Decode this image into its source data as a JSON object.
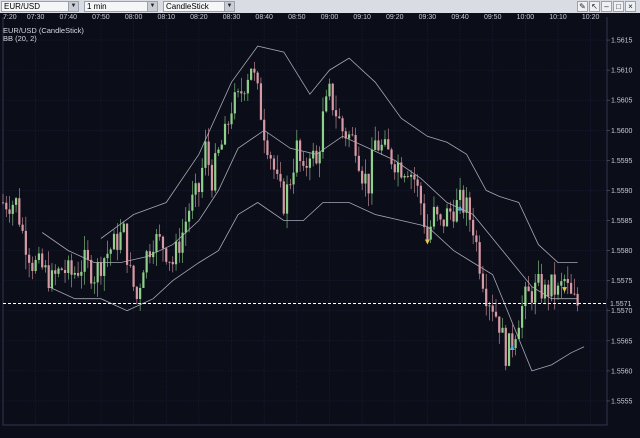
{
  "toolbar": {
    "symbol": "EUR/USD",
    "interval": "1 min",
    "chart_type": "CandleStick",
    "icons": [
      "pencil-icon",
      "cursor-icon",
      "minimize-icon",
      "restore-icon",
      "close-icon"
    ]
  },
  "colors": {
    "background": "#0b0d19",
    "grid": "#1f2540",
    "candle_up": "#8fd08a",
    "candle_down": "#d79aa4",
    "bands": "#bfc3cf",
    "current_price_line": "#ffffff",
    "marker_buy": "#4fb3e8",
    "marker_sell": "#e8c24f"
  },
  "chart_data": {
    "type": "candlestick",
    "title": "EUR/USD (CandleStick)",
    "indicator_label": "BB (20, 2)",
    "x_ticks": [
      "7:20",
      "07:30",
      "07:40",
      "07:50",
      "08:00",
      "08:10",
      "08:20",
      "08:30",
      "08:40",
      "08:50",
      "09:00",
      "09:10",
      "09:20",
      "09:30",
      "09:40",
      "09:50",
      "10:00",
      "10:10",
      "10:20"
    ],
    "y_ticks": [
      1.5555,
      1.556,
      1.5565,
      1.557,
      1.5575,
      1.558,
      1.5585,
      1.559,
      1.5595,
      1.56,
      1.5605,
      1.561,
      1.5615
    ],
    "y_tick_labels": [
      "1.5555",
      "1.5560",
      "1.5565",
      "1.5570",
      "1.5575",
      "1.5580",
      "1.5585",
      "1.5590",
      "1.5595",
      "1.5600",
      "1.5605",
      "1.5610",
      "1.5615"
    ],
    "ylim": [
      1.5551,
      1.5619
    ],
    "x_range_minutes": [
      0,
      185
    ],
    "current_price": 1.55712,
    "current_price_label": "1.5571",
    "close_path": [
      [
        0,
        1.5588
      ],
      [
        4,
        1.5588
      ],
      [
        6,
        1.5583
      ],
      [
        9,
        1.5578
      ],
      [
        12,
        1.5577
      ],
      [
        15,
        1.5575
      ],
      [
        18,
        1.5577
      ],
      [
        21,
        1.5576
      ],
      [
        25,
        1.5578
      ],
      [
        28,
        1.5576
      ],
      [
        31,
        1.5579
      ],
      [
        34,
        1.5581
      ],
      [
        37,
        1.5583
      ],
      [
        39,
        1.5576
      ],
      [
        41,
        1.5572
      ],
      [
        43,
        1.5578
      ],
      [
        46,
        1.5582
      ],
      [
        49,
        1.5581
      ],
      [
        52,
        1.5578
      ],
      [
        55,
        1.5583
      ],
      [
        57,
        1.5587
      ],
      [
        60,
        1.559
      ],
      [
        62,
        1.5597
      ],
      [
        64,
        1.5592
      ],
      [
        66,
        1.5596
      ],
      [
        68,
        1.5599
      ],
      [
        70,
        1.5604
      ],
      [
        72,
        1.5605
      ],
      [
        74,
        1.5608
      ],
      [
        76,
        1.5611
      ],
      [
        78,
        1.5606
      ],
      [
        80,
        1.56
      ],
      [
        82,
        1.5596
      ],
      [
        84,
        1.5591
      ],
      [
        86,
        1.5588
      ],
      [
        88,
        1.5592
      ],
      [
        90,
        1.5597
      ],
      [
        92,
        1.5592
      ],
      [
        94,
        1.5597
      ],
      [
        96,
        1.5594
      ],
      [
        98,
        1.5602
      ],
      [
        100,
        1.5606
      ],
      [
        102,
        1.5603
      ],
      [
        104,
        1.56
      ],
      [
        106,
        1.5599
      ],
      [
        108,
        1.5598
      ],
      [
        110,
        1.5593
      ],
      [
        112,
        1.5591
      ],
      [
        114,
        1.5598
      ],
      [
        116,
        1.5597
      ],
      [
        118,
        1.5596
      ],
      [
        120,
        1.5595
      ],
      [
        122,
        1.5594
      ],
      [
        124,
        1.5594
      ],
      [
        126,
        1.5592
      ],
      [
        128,
        1.5588
      ],
      [
        130,
        1.5582
      ],
      [
        132,
        1.5586
      ],
      [
        134,
        1.5584
      ],
      [
        136,
        1.5586
      ],
      [
        138,
        1.5587
      ],
      [
        140,
        1.5588
      ],
      [
        142,
        1.5587
      ],
      [
        144,
        1.5584
      ],
      [
        146,
        1.5578
      ],
      [
        148,
        1.5573
      ],
      [
        150,
        1.5571
      ],
      [
        152,
        1.5568
      ],
      [
        154,
        1.5563
      ],
      [
        156,
        1.5565
      ],
      [
        158,
        1.5569
      ],
      [
        160,
        1.5572
      ],
      [
        162,
        1.5573
      ],
      [
        164,
        1.5574
      ],
      [
        166,
        1.5573
      ],
      [
        168,
        1.5574
      ],
      [
        170,
        1.5573
      ],
      [
        172,
        1.5575
      ],
      [
        174,
        1.5572
      ],
      [
        176,
        1.5571
      ]
    ],
    "series": [
      {
        "name": "BB upper",
        "values": [
          [
            30,
            1.5582
          ],
          [
            40,
            1.5586
          ],
          [
            50,
            1.5588
          ],
          [
            60,
            1.5596
          ],
          [
            70,
            1.5608
          ],
          [
            78,
            1.5614
          ],
          [
            86,
            1.5613
          ],
          [
            94,
            1.5606
          ],
          [
            100,
            1.561
          ],
          [
            106,
            1.5612
          ],
          [
            114,
            1.5608
          ],
          [
            122,
            1.5602
          ],
          [
            130,
            1.5599
          ],
          [
            136,
            1.5598
          ],
          [
            142,
            1.5596
          ],
          [
            148,
            1.559
          ],
          [
            152,
            1.5589
          ],
          [
            158,
            1.5588
          ],
          [
            164,
            1.5581
          ],
          [
            170,
            1.5578
          ],
          [
            176,
            1.5578
          ]
        ]
      },
      {
        "name": "BB middle",
        "values": [
          [
            12,
            1.5583
          ],
          [
            20,
            1.558
          ],
          [
            28,
            1.5578
          ],
          [
            36,
            1.5578
          ],
          [
            44,
            1.5579
          ],
          [
            52,
            1.5581
          ],
          [
            60,
            1.5585
          ],
          [
            66,
            1.559
          ],
          [
            72,
            1.5597
          ],
          [
            80,
            1.56
          ],
          [
            88,
            1.5597
          ],
          [
            96,
            1.5596
          ],
          [
            104,
            1.5599
          ],
          [
            112,
            1.5597
          ],
          [
            120,
            1.5595
          ],
          [
            128,
            1.5592
          ],
          [
            136,
            1.5588
          ],
          [
            144,
            1.5586
          ],
          [
            150,
            1.5582
          ],
          [
            156,
            1.5578
          ],
          [
            162,
            1.5574
          ],
          [
            168,
            1.5572
          ],
          [
            176,
            1.5572
          ]
        ]
      },
      {
        "name": "BB lower",
        "values": [
          [
            14,
            1.5574
          ],
          [
            22,
            1.5572
          ],
          [
            30,
            1.5572
          ],
          [
            38,
            1.557
          ],
          [
            46,
            1.5572
          ],
          [
            52,
            1.5575
          ],
          [
            60,
            1.5578
          ],
          [
            66,
            1.558
          ],
          [
            72,
            1.5586
          ],
          [
            78,
            1.5588
          ],
          [
            86,
            1.5585
          ],
          [
            92,
            1.5585
          ],
          [
            98,
            1.5588
          ],
          [
            106,
            1.5588
          ],
          [
            114,
            1.5586
          ],
          [
            122,
            1.5585
          ],
          [
            130,
            1.5584
          ],
          [
            138,
            1.558
          ],
          [
            144,
            1.5578
          ],
          [
            150,
            1.5576
          ],
          [
            156,
            1.5568
          ],
          [
            162,
            1.556
          ],
          [
            168,
            1.5561
          ],
          [
            174,
            1.5563
          ],
          [
            178,
            1.5564
          ]
        ]
      }
    ],
    "markers": [
      {
        "type": "sell",
        "x": 130,
        "y": 1.55815
      },
      {
        "type": "buy",
        "x": 140,
        "y": 1.5587
      },
      {
        "type": "buy",
        "x": 156,
        "y": 1.55638
      },
      {
        "type": "sell",
        "x": 172,
        "y": 1.55736
      }
    ]
  }
}
